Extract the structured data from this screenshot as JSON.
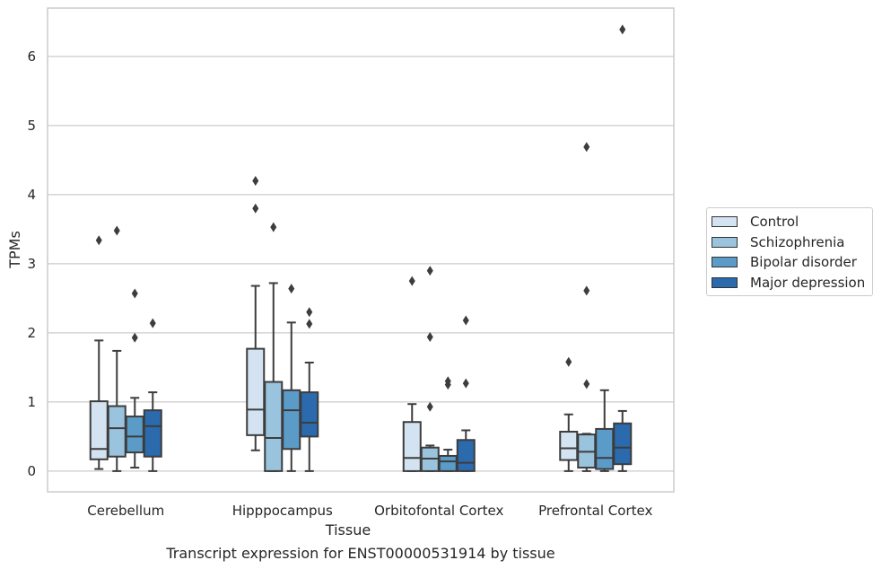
{
  "chart_data": {
    "type": "box",
    "title": "Transcript expression for ENST00000531914 by tissue",
    "xlabel": "Tissue",
    "ylabel": "TPMs",
    "ylim": [
      -0.3,
      6.7
    ],
    "yticks": [
      0,
      1,
      2,
      3,
      4,
      5,
      6
    ],
    "grid": "horizontal",
    "legend_position": "right",
    "categories": [
      "Cerebellum",
      "Hipppocampus",
      "Orbitofontal Cortex",
      "Prefrontal Cortex"
    ],
    "series": [
      {
        "name": "Control",
        "color": "#d4e3f1",
        "boxes": [
          {
            "whislo": 0.03,
            "q1": 0.17,
            "med": 0.32,
            "q3": 1.01,
            "whishi": 1.89,
            "fliers": [
              3.34
            ]
          },
          {
            "whislo": 0.3,
            "q1": 0.52,
            "med": 0.89,
            "q3": 1.77,
            "whishi": 2.68,
            "fliers": [
              3.8,
              4.2
            ]
          },
          {
            "whislo": 0.0,
            "q1": 0.0,
            "med": 0.19,
            "q3": 0.71,
            "whishi": 0.97,
            "fliers": [
              2.75
            ]
          },
          {
            "whislo": 0.0,
            "q1": 0.16,
            "med": 0.33,
            "q3": 0.57,
            "whishi": 0.82,
            "fliers": [
              1.58
            ]
          }
        ]
      },
      {
        "name": "Schizophrenia",
        "color": "#9ac3dd",
        "boxes": [
          {
            "whislo": 0.0,
            "q1": 0.21,
            "med": 0.62,
            "q3": 0.94,
            "whishi": 1.74,
            "fliers": [
              3.48
            ]
          },
          {
            "whislo": 0.0,
            "q1": 0.0,
            "med": 0.48,
            "q3": 1.29,
            "whishi": 2.72,
            "fliers": [
              3.53
            ]
          },
          {
            "whislo": 0.0,
            "q1": 0.0,
            "med": 0.18,
            "q3": 0.34,
            "whishi": 0.37,
            "fliers": [
              0.93,
              1.94,
              2.9
            ]
          },
          {
            "whislo": 0.0,
            "q1": 0.05,
            "med": 0.28,
            "q3": 0.53,
            "whishi": 0.54,
            "fliers": [
              1.26,
              2.61,
              4.69
            ]
          }
        ]
      },
      {
        "name": "Bipolar disorder",
        "color": "#5b9bc8",
        "boxes": [
          {
            "whislo": 0.05,
            "q1": 0.27,
            "med": 0.5,
            "q3": 0.79,
            "whishi": 1.06,
            "fliers": [
              1.93,
              2.57
            ]
          },
          {
            "whislo": 0.0,
            "q1": 0.32,
            "med": 0.88,
            "q3": 1.17,
            "whishi": 2.15,
            "fliers": [
              2.64
            ]
          },
          {
            "whislo": 0.0,
            "q1": 0.0,
            "med": 0.14,
            "q3": 0.22,
            "whishi": 0.31,
            "fliers": [
              1.25,
              1.3
            ]
          },
          {
            "whislo": 0.0,
            "q1": 0.03,
            "med": 0.19,
            "q3": 0.61,
            "whishi": 1.17,
            "fliers": []
          }
        ]
      },
      {
        "name": "Major depression",
        "color": "#2a6aad",
        "boxes": [
          {
            "whislo": 0.0,
            "q1": 0.21,
            "med": 0.65,
            "q3": 0.88,
            "whishi": 1.14,
            "fliers": [
              2.14
            ]
          },
          {
            "whislo": 0.0,
            "q1": 0.5,
            "med": 0.7,
            "q3": 1.14,
            "whishi": 1.57,
            "fliers": [
              2.13,
              2.3
            ]
          },
          {
            "whislo": 0.0,
            "q1": 0.0,
            "med": 0.12,
            "q3": 0.45,
            "whishi": 0.59,
            "fliers": [
              1.27,
              2.18
            ]
          },
          {
            "whislo": 0.0,
            "q1": 0.1,
            "med": 0.34,
            "q3": 0.69,
            "whishi": 0.87,
            "fliers": [
              6.39
            ]
          }
        ]
      }
    ]
  }
}
